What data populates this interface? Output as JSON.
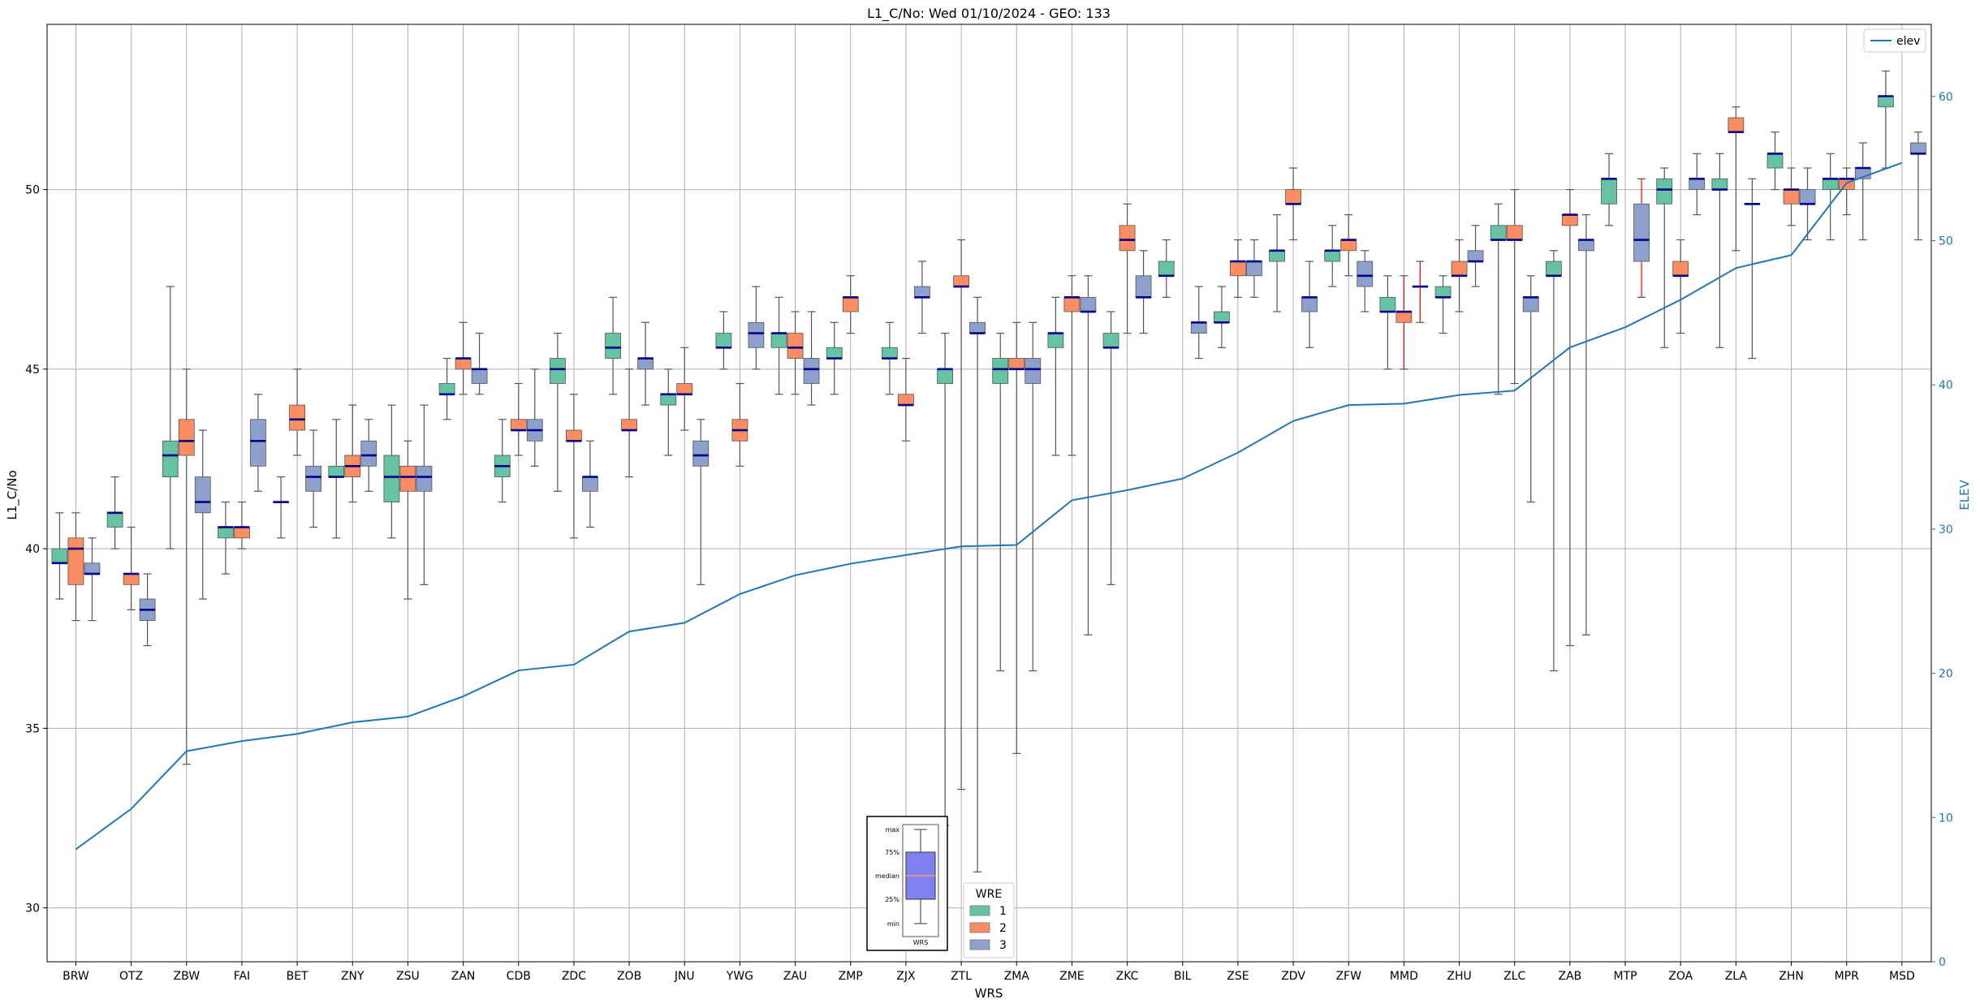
{
  "chart_data": {
    "type": "box",
    "title": "L1_C/No: Wed 01/10/2024 - GEO: 133",
    "xlabel": "WRS",
    "ylabel": "L1_C/No",
    "y2label": "ELEV",
    "ylim": [
      28.5,
      54.6
    ],
    "y2lim": [
      0,
      65
    ],
    "yticks": [
      30,
      35,
      40,
      45,
      50
    ],
    "y2ticks": [
      0,
      10,
      20,
      30,
      40,
      50,
      60
    ],
    "grid": true,
    "categories": [
      "BRW",
      "OTZ",
      "ZBW",
      "FAI",
      "BET",
      "ZNY",
      "ZSU",
      "ZAN",
      "CDB",
      "ZDC",
      "ZOB",
      "JNU",
      "YWG",
      "ZAU",
      "ZMP",
      "ZJX",
      "ZTL",
      "ZMA",
      "ZME",
      "ZKC",
      "BIL",
      "ZSE",
      "ZDV",
      "ZFW",
      "MMD",
      "ZHU",
      "ZLC",
      "ZAB",
      "MTP",
      "ZOA",
      "ZLA",
      "ZHN",
      "MPR",
      "MSD"
    ],
    "legend": {
      "title": "WRE",
      "placement": "bottom-center",
      "entries": [
        {
          "name": "1",
          "color": "#66c2a5"
        },
        {
          "name": "2",
          "color": "#fc8d62"
        },
        {
          "name": "3",
          "color": "#8da0cb"
        }
      ]
    },
    "line_legend": {
      "name": "elev",
      "color": "#1f77b4",
      "placement": "top-right"
    },
    "key_box": {
      "labels": [
        "max",
        "75%",
        "median",
        "25%",
        "min"
      ],
      "caption": "WRS",
      "color": "#8080f0"
    },
    "colors": {
      "wre1": "#66c2a5",
      "wre2": "#fc8d62",
      "wre3": "#8da0cb",
      "median": "#00008b",
      "elev": "#1f77b4",
      "whisker_alt": "#ff0000"
    },
    "series": [
      {
        "name": "1",
        "boxes": [
          {
            "cat": "BRW",
            "min": 38.6,
            "q1": 39.6,
            "med": 39.6,
            "q3": 40.0,
            "max": 41.0
          },
          {
            "cat": "OTZ",
            "min": 40.0,
            "q1": 40.6,
            "med": 41.0,
            "q3": 41.0,
            "max": 42.0
          },
          {
            "cat": "ZBW",
            "min": 40.0,
            "q1": 42.0,
            "med": 42.6,
            "q3": 43.0,
            "max": 47.3
          },
          {
            "cat": "FAI",
            "min": 39.3,
            "q1": 40.3,
            "med": 40.6,
            "q3": 40.6,
            "max": 41.3
          },
          {
            "cat": "BET",
            "min": 40.3,
            "q1": 41.3,
            "med": 41.3,
            "q3": 41.3,
            "max": 42.0
          },
          {
            "cat": "ZNY",
            "min": 40.3,
            "q1": 42.0,
            "med": 42.0,
            "q3": 42.3,
            "max": 43.6
          },
          {
            "cat": "ZSU",
            "min": 40.3,
            "q1": 41.3,
            "med": 42.0,
            "q3": 42.6,
            "max": 44.0
          },
          {
            "cat": "ZAN",
            "min": 43.6,
            "q1": 44.3,
            "med": 44.3,
            "q3": 44.6,
            "max": 45.3
          },
          {
            "cat": "CDB",
            "min": 41.3,
            "q1": 42.0,
            "med": 42.3,
            "q3": 42.6,
            "max": 43.6
          },
          {
            "cat": "ZDC",
            "min": 41.6,
            "q1": 44.6,
            "med": 45.0,
            "q3": 45.3,
            "max": 46.0
          },
          {
            "cat": "ZOB",
            "min": 44.3,
            "q1": 45.3,
            "med": 45.6,
            "q3": 46.0,
            "max": 47.0
          },
          {
            "cat": "JNU",
            "min": 42.6,
            "q1": 44.0,
            "med": 44.3,
            "q3": 44.3,
            "max": 45.0
          },
          {
            "cat": "YWG",
            "min": 45.0,
            "q1": 45.6,
            "med": 45.6,
            "q3": 46.0,
            "max": 46.6
          },
          {
            "cat": "ZAU",
            "min": 44.3,
            "q1": 45.6,
            "med": 46.0,
            "q3": 46.0,
            "max": 47.0
          },
          {
            "cat": "ZMP",
            "min": 44.3,
            "q1": 45.3,
            "med": 45.3,
            "q3": 45.6,
            "max": 46.3
          },
          {
            "cat": "ZJX",
            "min": 44.3,
            "q1": 45.3,
            "med": 45.3,
            "q3": 45.6,
            "max": 46.3
          },
          {
            "cat": "ZTL",
            "min": 32.3,
            "q1": 44.6,
            "med": 45.0,
            "q3": 45.0,
            "max": 46.0
          },
          {
            "cat": "ZMA",
            "min": 36.6,
            "q1": 44.6,
            "med": 45.0,
            "q3": 45.3,
            "max": 46.0
          },
          {
            "cat": "ZME",
            "min": 42.6,
            "q1": 45.6,
            "med": 46.0,
            "q3": 46.0,
            "max": 47.0
          },
          {
            "cat": "ZKC",
            "min": 39.0,
            "q1": 45.6,
            "med": 45.6,
            "q3": 46.0,
            "max": 46.6
          },
          {
            "cat": "BIL",
            "min": 47.0,
            "q1": 47.6,
            "med": 47.6,
            "q3": 48.0,
            "max": 48.6
          },
          {
            "cat": "ZSE",
            "min": 45.6,
            "q1": 46.3,
            "med": 46.3,
            "q3": 46.6,
            "max": 47.3
          },
          {
            "cat": "ZDV",
            "min": 46.6,
            "q1": 48.0,
            "med": 48.3,
            "q3": 48.3,
            "max": 49.3
          },
          {
            "cat": "ZFW",
            "min": 47.3,
            "q1": 48.0,
            "med": 48.3,
            "q3": 48.3,
            "max": 49.0
          },
          {
            "cat": "MMD",
            "min": 45.0,
            "q1": 46.6,
            "med": 46.6,
            "q3": 47.0,
            "max": 47.6
          },
          {
            "cat": "ZHU",
            "min": 46.0,
            "q1": 47.0,
            "med": 47.0,
            "q3": 47.3,
            "max": 47.6
          },
          {
            "cat": "ZLC",
            "min": 44.3,
            "q1": 48.6,
            "med": 48.6,
            "q3": 49.0,
            "max": 49.6
          },
          {
            "cat": "ZAB",
            "min": 36.6,
            "q1": 47.6,
            "med": 47.6,
            "q3": 48.0,
            "max": 48.3
          },
          {
            "cat": "MTP",
            "min": 49.0,
            "q1": 49.6,
            "med": 50.3,
            "q3": 50.3,
            "max": 51.0
          },
          {
            "cat": "ZOA",
            "min": 45.6,
            "q1": 49.6,
            "med": 50.0,
            "q3": 50.3,
            "max": 50.6
          },
          {
            "cat": "ZLA",
            "min": 45.6,
            "q1": 50.0,
            "med": 50.0,
            "q3": 50.3,
            "max": 51.0
          },
          {
            "cat": "ZHN",
            "min": 50.0,
            "q1": 50.6,
            "med": 51.0,
            "q3": 51.0,
            "max": 51.6
          },
          {
            "cat": "MPR",
            "min": 48.6,
            "q1": 50.0,
            "med": 50.3,
            "q3": 50.3,
            "max": 51.0
          },
          {
            "cat": "MSD",
            "min": 50.6,
            "q1": 52.3,
            "med": 52.6,
            "q3": 52.6,
            "max": 53.3
          }
        ]
      },
      {
        "name": "2",
        "boxes": [
          {
            "cat": "BRW",
            "min": 38.0,
            "q1": 39.0,
            "med": 40.0,
            "q3": 40.3,
            "max": 41.0
          },
          {
            "cat": "OTZ",
            "min": 38.3,
            "q1": 39.0,
            "med": 39.3,
            "q3": 39.3,
            "max": 40.6
          },
          {
            "cat": "ZBW",
            "min": 34.0,
            "q1": 42.6,
            "med": 43.0,
            "q3": 43.6,
            "max": 45.0
          },
          {
            "cat": "FAI",
            "min": 40.0,
            "q1": 40.3,
            "med": 40.6,
            "q3": 40.6,
            "max": 41.3
          },
          {
            "cat": "BET",
            "min": 42.6,
            "q1": 43.3,
            "med": 43.6,
            "q3": 44.0,
            "max": 45.0
          },
          {
            "cat": "ZNY",
            "min": 41.3,
            "q1": 42.0,
            "med": 42.3,
            "q3": 42.6,
            "max": 44.0
          },
          {
            "cat": "ZSU",
            "min": 38.6,
            "q1": 41.6,
            "med": 42.0,
            "q3": 42.3,
            "max": 43.0
          },
          {
            "cat": "ZAN",
            "min": 44.3,
            "q1": 45.0,
            "med": 45.3,
            "q3": 45.3,
            "max": 46.3
          },
          {
            "cat": "CDB",
            "min": 42.6,
            "q1": 43.3,
            "med": 43.3,
            "q3": 43.6,
            "max": 44.6
          },
          {
            "cat": "ZDC",
            "min": 40.3,
            "q1": 43.0,
            "med": 43.0,
            "q3": 43.3,
            "max": 44.3
          },
          {
            "cat": "ZOB",
            "min": 42.0,
            "q1": 43.3,
            "med": 43.3,
            "q3": 43.6,
            "max": 45.0
          },
          {
            "cat": "JNU",
            "min": 43.3,
            "q1": 44.3,
            "med": 44.3,
            "q3": 44.6,
            "max": 45.6
          },
          {
            "cat": "YWG",
            "min": 42.3,
            "q1": 43.0,
            "med": 43.3,
            "q3": 43.6,
            "max": 44.6
          },
          {
            "cat": "ZAU",
            "min": 44.3,
            "q1": 45.3,
            "med": 45.6,
            "q3": 46.0,
            "max": 46.6
          },
          {
            "cat": "ZMP",
            "min": 46.0,
            "q1": 46.6,
            "med": 47.0,
            "q3": 47.0,
            "max": 47.6
          },
          {
            "cat": "ZJX",
            "min": 43.0,
            "q1": 44.0,
            "med": 44.0,
            "q3": 44.3,
            "max": 45.3
          },
          {
            "cat": "ZTL",
            "min": 33.3,
            "q1": 47.3,
            "med": 47.3,
            "q3": 47.6,
            "max": 48.6
          },
          {
            "cat": "ZMA",
            "min": 34.3,
            "q1": 45.0,
            "med": 45.0,
            "q3": 45.3,
            "max": 46.3
          },
          {
            "cat": "ZME",
            "min": 42.6,
            "q1": 46.6,
            "med": 47.0,
            "q3": 47.0,
            "max": 47.6
          },
          {
            "cat": "ZKC",
            "min": 46.0,
            "q1": 48.3,
            "med": 48.6,
            "q3": 49.0,
            "max": 49.6
          },
          {
            "cat": "ZSE",
            "min": 47.0,
            "q1": 47.6,
            "med": 48.0,
            "q3": 48.0,
            "max": 48.6
          },
          {
            "cat": "ZDV",
            "min": 48.6,
            "q1": 49.6,
            "med": 49.6,
            "q3": 50.0,
            "max": 50.6
          },
          {
            "cat": "ZFW",
            "min": 47.6,
            "q1": 48.3,
            "med": 48.6,
            "q3": 48.6,
            "max": 49.3
          },
          {
            "cat": "MMD",
            "min": 45.0,
            "q1": 46.3,
            "med": 46.6,
            "q3": 46.6,
            "max": 47.6,
            "whisker": "red"
          },
          {
            "cat": "ZHU",
            "min": 46.6,
            "q1": 47.6,
            "med": 47.6,
            "q3": 48.0,
            "max": 48.6
          },
          {
            "cat": "ZLC",
            "min": 44.6,
            "q1": 48.6,
            "med": 48.6,
            "q3": 49.0,
            "max": 50.0
          },
          {
            "cat": "ZAB",
            "min": 37.3,
            "q1": 49.0,
            "med": 49.3,
            "q3": 49.3,
            "max": 50.0
          },
          {
            "cat": "ZOA",
            "min": 46.0,
            "q1": 47.6,
            "med": 47.6,
            "q3": 48.0,
            "max": 48.6
          },
          {
            "cat": "ZLA",
            "min": 48.3,
            "q1": 51.6,
            "med": 51.6,
            "q3": 52.0,
            "max": 52.3
          },
          {
            "cat": "ZHN",
            "min": 49.0,
            "q1": 49.6,
            "med": 50.0,
            "q3": 50.0,
            "max": 50.6
          },
          {
            "cat": "MPR",
            "min": 49.3,
            "q1": 50.0,
            "med": 50.3,
            "q3": 50.3,
            "max": 50.6
          }
        ]
      },
      {
        "name": "3",
        "boxes": [
          {
            "cat": "BRW",
            "min": 38.0,
            "q1": 39.3,
            "med": 39.3,
            "q3": 39.6,
            "max": 40.3
          },
          {
            "cat": "OTZ",
            "min": 37.3,
            "q1": 38.0,
            "med": 38.3,
            "q3": 38.6,
            "max": 39.3
          },
          {
            "cat": "ZBW",
            "min": 38.6,
            "q1": 41.0,
            "med": 41.3,
            "q3": 42.0,
            "max": 43.3
          },
          {
            "cat": "FAI",
            "min": 41.6,
            "q1": 42.3,
            "med": 43.0,
            "q3": 43.6,
            "max": 44.3
          },
          {
            "cat": "BET",
            "min": 40.6,
            "q1": 41.6,
            "med": 42.0,
            "q3": 42.3,
            "max": 43.3
          },
          {
            "cat": "ZNY",
            "min": 41.6,
            "q1": 42.3,
            "med": 42.6,
            "q3": 43.0,
            "max": 43.6
          },
          {
            "cat": "ZSU",
            "min": 39.0,
            "q1": 41.6,
            "med": 42.0,
            "q3": 42.3,
            "max": 44.0
          },
          {
            "cat": "ZAN",
            "min": 44.3,
            "q1": 44.6,
            "med": 45.0,
            "q3": 45.0,
            "max": 46.0
          },
          {
            "cat": "CDB",
            "min": 42.3,
            "q1": 43.0,
            "med": 43.3,
            "q3": 43.6,
            "max": 45.0
          },
          {
            "cat": "ZDC",
            "min": 40.6,
            "q1": 41.6,
            "med": 42.0,
            "q3": 42.0,
            "max": 43.0
          },
          {
            "cat": "ZOB",
            "min": 44.0,
            "q1": 45.0,
            "med": 45.3,
            "q3": 45.3,
            "max": 46.3
          },
          {
            "cat": "JNU",
            "min": 39.0,
            "q1": 42.3,
            "med": 42.6,
            "q3": 43.0,
            "max": 43.6
          },
          {
            "cat": "YWG",
            "min": 45.0,
            "q1": 45.6,
            "med": 46.0,
            "q3": 46.3,
            "max": 47.3
          },
          {
            "cat": "ZAU",
            "min": 44.0,
            "q1": 44.6,
            "med": 45.0,
            "q3": 45.3,
            "max": 46.6
          },
          {
            "cat": "ZJX",
            "min": 46.0,
            "q1": 47.0,
            "med": 47.0,
            "q3": 47.3,
            "max": 48.0
          },
          {
            "cat": "ZTL",
            "min": 31.0,
            "q1": 46.0,
            "med": 46.0,
            "q3": 46.3,
            "max": 47.0
          },
          {
            "cat": "ZMA",
            "min": 36.6,
            "q1": 44.6,
            "med": 45.0,
            "q3": 45.3,
            "max": 46.3
          },
          {
            "cat": "ZME",
            "min": 37.6,
            "q1": 46.6,
            "med": 46.6,
            "q3": 47.0,
            "max": 47.6
          },
          {
            "cat": "ZKC",
            "min": 46.0,
            "q1": 47.0,
            "med": 47.0,
            "q3": 47.6,
            "max": 48.3
          },
          {
            "cat": "BIL",
            "min": 45.3,
            "q1": 46.0,
            "med": 46.3,
            "q3": 46.3,
            "max": 47.3
          },
          {
            "cat": "ZSE",
            "min": 47.0,
            "q1": 47.6,
            "med": 48.0,
            "q3": 48.0,
            "max": 48.6
          },
          {
            "cat": "ZDV",
            "min": 45.6,
            "q1": 46.6,
            "med": 47.0,
            "q3": 47.0,
            "max": 48.0
          },
          {
            "cat": "ZFW",
            "min": 46.6,
            "q1": 47.3,
            "med": 47.6,
            "q3": 48.0,
            "max": 48.3
          },
          {
            "cat": "MMD",
            "min": 46.3,
            "q1": 47.3,
            "med": 47.3,
            "q3": 47.3,
            "max": 48.0,
            "whisker": "red"
          },
          {
            "cat": "ZHU",
            "min": 47.3,
            "q1": 48.0,
            "med": 48.0,
            "q3": 48.3,
            "max": 49.0
          },
          {
            "cat": "ZLC",
            "min": 41.3,
            "q1": 46.6,
            "med": 47.0,
            "q3": 47.0,
            "max": 47.6
          },
          {
            "cat": "ZAB",
            "min": 37.6,
            "q1": 48.3,
            "med": 48.6,
            "q3": 48.6,
            "max": 49.3
          },
          {
            "cat": "MTP",
            "min": 47.0,
            "q1": 48.0,
            "med": 48.6,
            "q3": 49.6,
            "max": 50.3,
            "whisker": "red"
          },
          {
            "cat": "ZOA",
            "min": 49.3,
            "q1": 50.0,
            "med": 50.3,
            "q3": 50.3,
            "max": 51.0
          },
          {
            "cat": "ZLA",
            "min": 45.3,
            "q1": 49.6,
            "med": 49.6,
            "q3": 49.6,
            "max": 50.3
          },
          {
            "cat": "ZHN",
            "min": 48.6,
            "q1": 49.6,
            "med": 49.6,
            "q3": 50.0,
            "max": 50.6
          },
          {
            "cat": "MPR",
            "min": 48.6,
            "q1": 50.3,
            "med": 50.6,
            "q3": 50.6,
            "max": 51.3
          },
          {
            "cat": "MSD",
            "min": 48.6,
            "q1": 51.0,
            "med": 51.0,
            "q3": 51.3,
            "max": 51.6
          }
        ]
      }
    ],
    "elev": {
      "name": "elev",
      "values": [
        7.8,
        10.6,
        14.6,
        15.3,
        15.8,
        16.6,
        17.0,
        18.4,
        20.2,
        20.6,
        22.9,
        23.5,
        25.5,
        26.8,
        27.6,
        28.2,
        28.8,
        28.9,
        32.0,
        32.7,
        33.5,
        35.3,
        37.5,
        38.6,
        38.7,
        39.3,
        39.6,
        42.6,
        44.0,
        45.9,
        48.1,
        49.0,
        54.0,
        55.4
      ]
    }
  }
}
